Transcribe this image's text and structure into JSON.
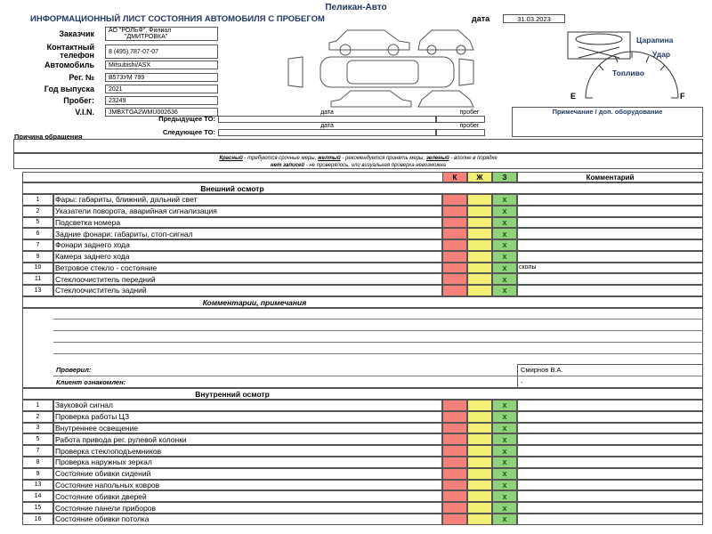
{
  "header": {
    "company": "Пеликан-Авто",
    "title": "ИНФОРМАЦИОННЫЙ ЛИСТ СОСТОЯНИЯ АВТОМОБИЛЯ С ПРОБЕГОМ",
    "date_label": "дата",
    "date": "31.03.2023"
  },
  "fields": [
    {
      "label": "Заказчик",
      "value": [
        "АО \"РОЛЬФ\", Филиал",
        "\"ДМИТРОВКА\""
      ]
    },
    {
      "label": [
        "Контактный",
        "телефон"
      ],
      "value": "8 (495) 787-07-07"
    },
    {
      "label": "Автомобиль",
      "value": "Mitsubishi/ASX"
    },
    {
      "label": "Рег. №",
      "value": "В573УМ 799"
    },
    {
      "label": "Год выпуска",
      "value": "2021"
    },
    {
      "label": "Пробег:",
      "value": "23249"
    },
    {
      "label": "V.I.N.",
      "value": "JMBXTGA2WMU002636"
    }
  ],
  "damage_legend": {
    "scratch": "Царапина",
    "dent": "Удар"
  },
  "fuel": {
    "label": "Топливо",
    "empty": "E",
    "full": "F"
  },
  "service": [
    {
      "label": "Предыдущее ТО:",
      "date_label": "дата",
      "mileage_label": "пробег"
    },
    {
      "label": "Следующее ТО:",
      "date_label": "дата",
      "mileage_label": "пробег"
    }
  ],
  "note_title": "Примечание / доп. оборудование",
  "reason_label": "Причина обращения",
  "color_legend": {
    "line1": [
      "Красный",
      " - требуются срочные меры, ",
      "желтый",
      " - рекомендуется принять меры, ",
      "зеленый",
      " - вполне в порядке"
    ],
    "line2": [
      "нет записей",
      " - не проверялось, или визуальная проверка невозможна"
    ]
  },
  "table": {
    "columns": [
      "К",
      "Ж",
      "З",
      "Комментарий"
    ],
    "exterior": {
      "title": "Внешний осмотр",
      "rows": [
        {
          "num": 1,
          "item": "Фары: габариты, ближний, дальний свет",
          "mark": "х"
        },
        {
          "num": 2,
          "item": "Указатели поворота, аварийная сигнализация",
          "mark": "х"
        },
        {
          "num": 5,
          "item": "Подсветка номера",
          "mark": "х"
        },
        {
          "num": 6,
          "item": "Задние фонари: габариты, стоп-сигнал",
          "mark": "х"
        },
        {
          "num": 7,
          "item": "Фонари заднего хода",
          "mark": "х"
        },
        {
          "num": 9,
          "item": "Камера заднего хода",
          "mark": "х"
        },
        {
          "num": 10,
          "item": "Ветровое стекло - состояние",
          "mark": "х",
          "comment": "сколы"
        },
        {
          "num": 11,
          "item": "Стеклоочиститель передний",
          "mark": "х"
        },
        {
          "num": 13,
          "item": "Стеклоочиститель задний",
          "mark": "х"
        }
      ]
    },
    "comments": {
      "title": "Комментарии, примечания",
      "checked_label": "Проверил:",
      "checked_by": "Смирнов В.А.",
      "client_label": "Клиент ознакомлен:",
      "client_value": "-"
    },
    "interior": {
      "title": "Внутренний осмотр",
      "rows": [
        {
          "num": 1,
          "item": "Звуковой сигнал",
          "mark": "х"
        },
        {
          "num": 2,
          "item": "Проверка работы ЦЗ",
          "mark": "х"
        },
        {
          "num": 3,
          "item": "Внутреннее освещение",
          "mark": "х"
        },
        {
          "num": 5,
          "item": "Работа привода рег. рулевой колонки",
          "mark": "х"
        },
        {
          "num": 7,
          "item": "Проверка стеклоподъемников",
          "mark": "х"
        },
        {
          "num": 8,
          "item": "Проверка наружных зеркал",
          "mark": "х"
        },
        {
          "num": 9,
          "item": "Состояние обивки сидений",
          "mark": "х"
        },
        {
          "num": 13,
          "item": "Состояние напольных ковров",
          "mark": "х"
        },
        {
          "num": 14,
          "item": "Состояние обивки дверей",
          "mark": "х"
        },
        {
          "num": 15,
          "item": "Состояние панели приборов",
          "mark": "х"
        },
        {
          "num": 16,
          "item": "Состояние обивки потолка",
          "mark": "х"
        }
      ]
    }
  }
}
